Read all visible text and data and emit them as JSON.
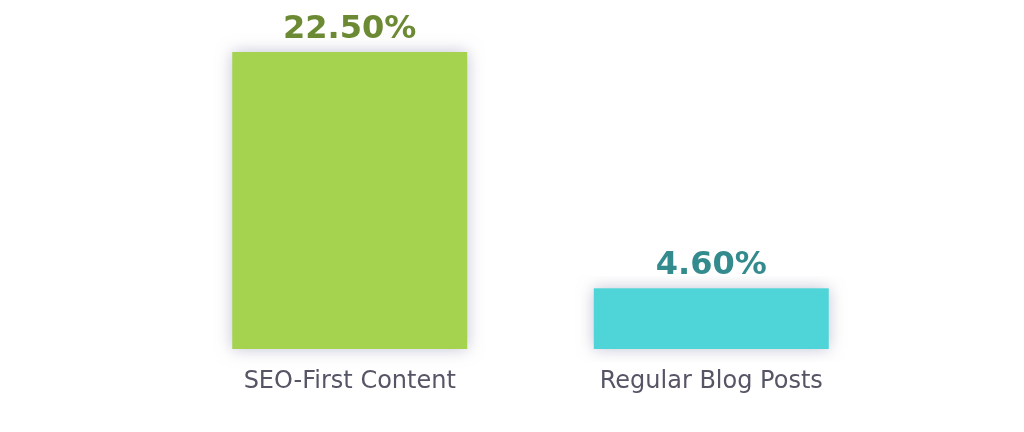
{
  "chart_data": {
    "type": "bar",
    "categories": [
      "SEO-First Content",
      "Regular Blog Posts"
    ],
    "values": [
      22.5,
      4.6
    ],
    "colors": [
      "#a5d34f",
      "#4fd5d8"
    ],
    "value_labels": [
      "22.50%",
      "4.60%"
    ]
  }
}
